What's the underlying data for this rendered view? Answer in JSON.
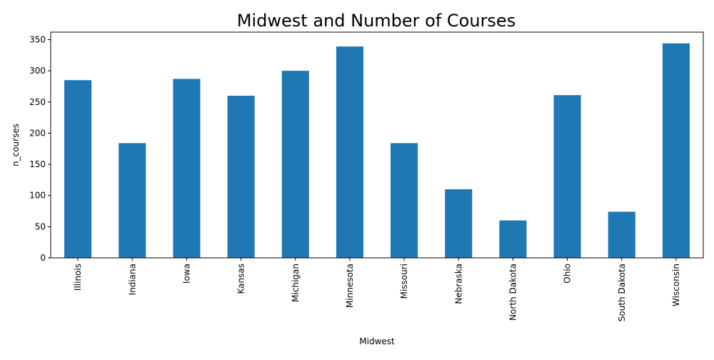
{
  "chart_data": {
    "type": "bar",
    "title": "Midwest and Number of Courses",
    "xlabel": "Midwest",
    "ylabel": "n_courses",
    "categories": [
      "Illinois",
      "Indiana",
      "Iowa",
      "Kansas",
      "Michigan",
      "Minnesota",
      "Missouri",
      "Nebraska",
      "North Dakota",
      "Ohio",
      "South Dakota",
      "Wisconsin"
    ],
    "values": [
      285,
      184,
      287,
      260,
      300,
      339,
      184,
      110,
      60,
      261,
      74,
      344
    ],
    "ylim": [
      0,
      362
    ],
    "yticks": [
      0,
      50,
      100,
      150,
      200,
      250,
      300,
      350
    ],
    "grid": false,
    "legend": "none",
    "colors": {
      "bar": "#1f77b4",
      "axis": "#000000"
    }
  }
}
